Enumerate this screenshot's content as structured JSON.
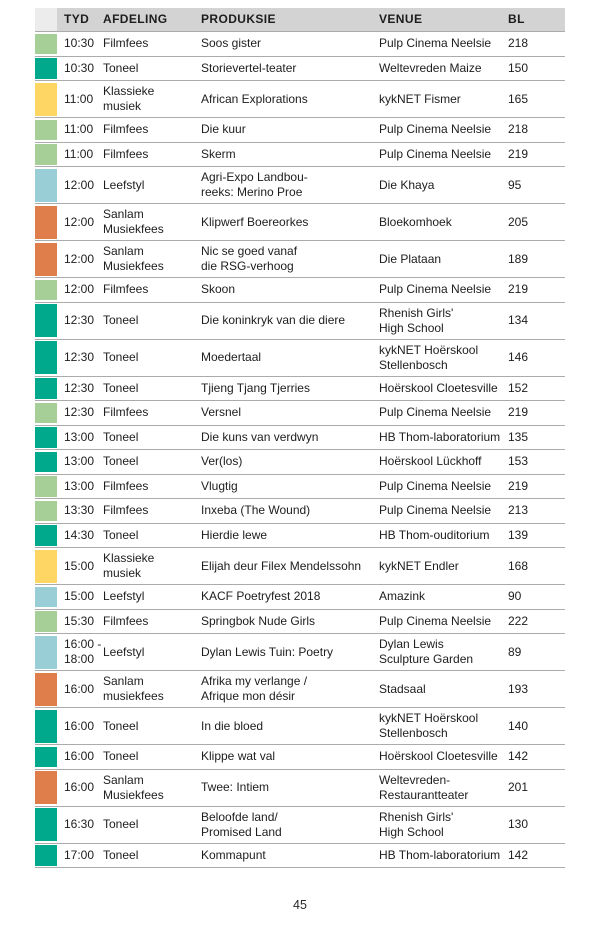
{
  "page_number": "45",
  "table": {
    "headers": [
      "TYD",
      "AFDELING",
      "PRODUKSIE",
      "VENUE",
      "BL"
    ],
    "category_colors": {
      "filmfees": "#a5cf97",
      "toneel": "#00a88c",
      "klassiek": "#fdd663",
      "leefstyl": "#99ced6",
      "sanlam": "#e07e4b"
    },
    "rows": [
      {
        "cat": "filmfees",
        "tyd": "10:30",
        "afdeling": "Filmfees",
        "produksie": "Soos gister",
        "venue": "Pulp Cinema Neelsie",
        "bl": "218"
      },
      {
        "cat": "toneel",
        "tyd": "10:30",
        "afdeling": "Toneel",
        "produksie": "Storievertel-teater",
        "venue": "Weltevreden Maize",
        "bl": "150"
      },
      {
        "cat": "klassiek",
        "tyd": "11:00",
        "afdeling": "Klassieke\nmusiek",
        "produksie": "African Explorations",
        "venue": "kykNET Fismer",
        "bl": "165"
      },
      {
        "cat": "filmfees",
        "tyd": "11:00",
        "afdeling": "Filmfees",
        "produksie": "Die kuur",
        "venue": "Pulp Cinema Neelsie",
        "bl": "218"
      },
      {
        "cat": "filmfees",
        "tyd": "11:00",
        "afdeling": "Filmfees",
        "produksie": "Skerm",
        "venue": "Pulp Cinema Neelsie",
        "bl": "219"
      },
      {
        "cat": "leefstyl",
        "tyd": "12:00",
        "afdeling": "Leefstyl",
        "produksie": "Agri-Expo Landbou-\nreeks: Merino Proe",
        "venue": "Die Khaya",
        "bl": "95"
      },
      {
        "cat": "sanlam",
        "tyd": "12:00",
        "afdeling": "Sanlam\nMusiekfees",
        "produksie": "Klipwerf Boereorkes",
        "venue": "Bloekomhoek",
        "bl": "205"
      },
      {
        "cat": "sanlam",
        "tyd": "12:00",
        "afdeling": "Sanlam\nMusiekfees",
        "produksie": "Nic se goed vanaf\ndie RSG-verhoog",
        "venue": "Die Plataan",
        "bl": "189"
      },
      {
        "cat": "filmfees",
        "tyd": "12:00",
        "afdeling": "Filmfees",
        "produksie": "Skoon",
        "venue": "Pulp Cinema Neelsie",
        "bl": "219"
      },
      {
        "cat": "toneel",
        "tyd": "12:30",
        "afdeling": "Toneel",
        "produksie": "Die koninkryk van die diere",
        "venue": "Rhenish Girls'\nHigh School",
        "bl": "134"
      },
      {
        "cat": "toneel",
        "tyd": "12:30",
        "afdeling": "Toneel",
        "produksie": "Moedertaal",
        "venue": "kykNET Hoërskool\nStellenbosch",
        "bl": "146"
      },
      {
        "cat": "toneel",
        "tyd": "12:30",
        "afdeling": "Toneel",
        "produksie": "Tjieng Tjang Tjerries",
        "venue": "Hoërskool Cloetesville",
        "bl": "152"
      },
      {
        "cat": "filmfees",
        "tyd": "12:30",
        "afdeling": "Filmfees",
        "produksie": "Versnel",
        "venue": "Pulp Cinema Neelsie",
        "bl": "219"
      },
      {
        "cat": "toneel",
        "tyd": "13:00",
        "afdeling": "Toneel",
        "produksie": "Die kuns van verdwyn",
        "venue": "HB Thom-laboratorium",
        "bl": "135"
      },
      {
        "cat": "toneel",
        "tyd": "13:00",
        "afdeling": "Toneel",
        "produksie": "Ver(los)",
        "venue": "Hoërskool Lückhoff",
        "bl": "153"
      },
      {
        "cat": "filmfees",
        "tyd": "13:00",
        "afdeling": "Filmfees",
        "produksie": "Vlugtig",
        "venue": "Pulp Cinema Neelsie",
        "bl": "219"
      },
      {
        "cat": "filmfees",
        "tyd": "13:30",
        "afdeling": "Filmfees",
        "produksie": "Inxeba (The Wound)",
        "venue": "Pulp Cinema Neelsie",
        "bl": "213"
      },
      {
        "cat": "toneel",
        "tyd": "14:30",
        "afdeling": "Toneel",
        "produksie": "Hierdie lewe",
        "venue": "HB Thom-ouditorium",
        "bl": "139"
      },
      {
        "cat": "klassiek",
        "tyd": "15:00",
        "afdeling": "Klassieke\nmusiek",
        "produksie": "Elijah deur Filex Mendelssohn",
        "venue": "kykNET Endler",
        "bl": "168"
      },
      {
        "cat": "leefstyl",
        "tyd": "15:00",
        "afdeling": "Leefstyl",
        "produksie": "KACF Poetryfest 2018",
        "venue": "Amazink",
        "bl": "90"
      },
      {
        "cat": "filmfees",
        "tyd": "15:30",
        "afdeling": "Filmfees",
        "produksie": "Springbok Nude Girls",
        "venue": "Pulp Cinema Neelsie",
        "bl": "222"
      },
      {
        "cat": "leefstyl",
        "tyd": "16:00 -\n18:00",
        "afdeling": "Leefstyl",
        "produksie": "Dylan Lewis Tuin: Poetry",
        "venue": "Dylan Lewis\nSculpture Garden",
        "bl": "89"
      },
      {
        "cat": "sanlam",
        "tyd": "16:00",
        "afdeling": "Sanlam\nmusiekfees",
        "produksie": "Afrika my verlange /\nAfrique mon désir",
        "venue": "Stadsaal",
        "bl": "193"
      },
      {
        "cat": "toneel",
        "tyd": "16:00",
        "afdeling": "Toneel",
        "produksie": "In die bloed",
        "venue": "kykNET Hoërskool\nStellenbosch",
        "bl": "140"
      },
      {
        "cat": "toneel",
        "tyd": "16:00",
        "afdeling": "Toneel",
        "produksie": "Klippe wat val",
        "venue": "Hoërskool Cloetesville",
        "bl": "142"
      },
      {
        "cat": "sanlam",
        "tyd": "16:00",
        "afdeling": "Sanlam\nMusiekfees",
        "produksie": "Twee: Intiem",
        "venue": "Weltevreden-\nRestaurantteater",
        "bl": "201"
      },
      {
        "cat": "toneel",
        "tyd": "16:30",
        "afdeling": "Toneel",
        "produksie": "Beloofde land/\nPromised Land",
        "venue": "Rhenish Girls'\nHigh School",
        "bl": "130"
      },
      {
        "cat": "toneel",
        "tyd": "17:00",
        "afdeling": "Toneel",
        "produksie": "Kommapunt",
        "venue": "HB Thom-laboratorium",
        "bl": "142"
      }
    ]
  }
}
